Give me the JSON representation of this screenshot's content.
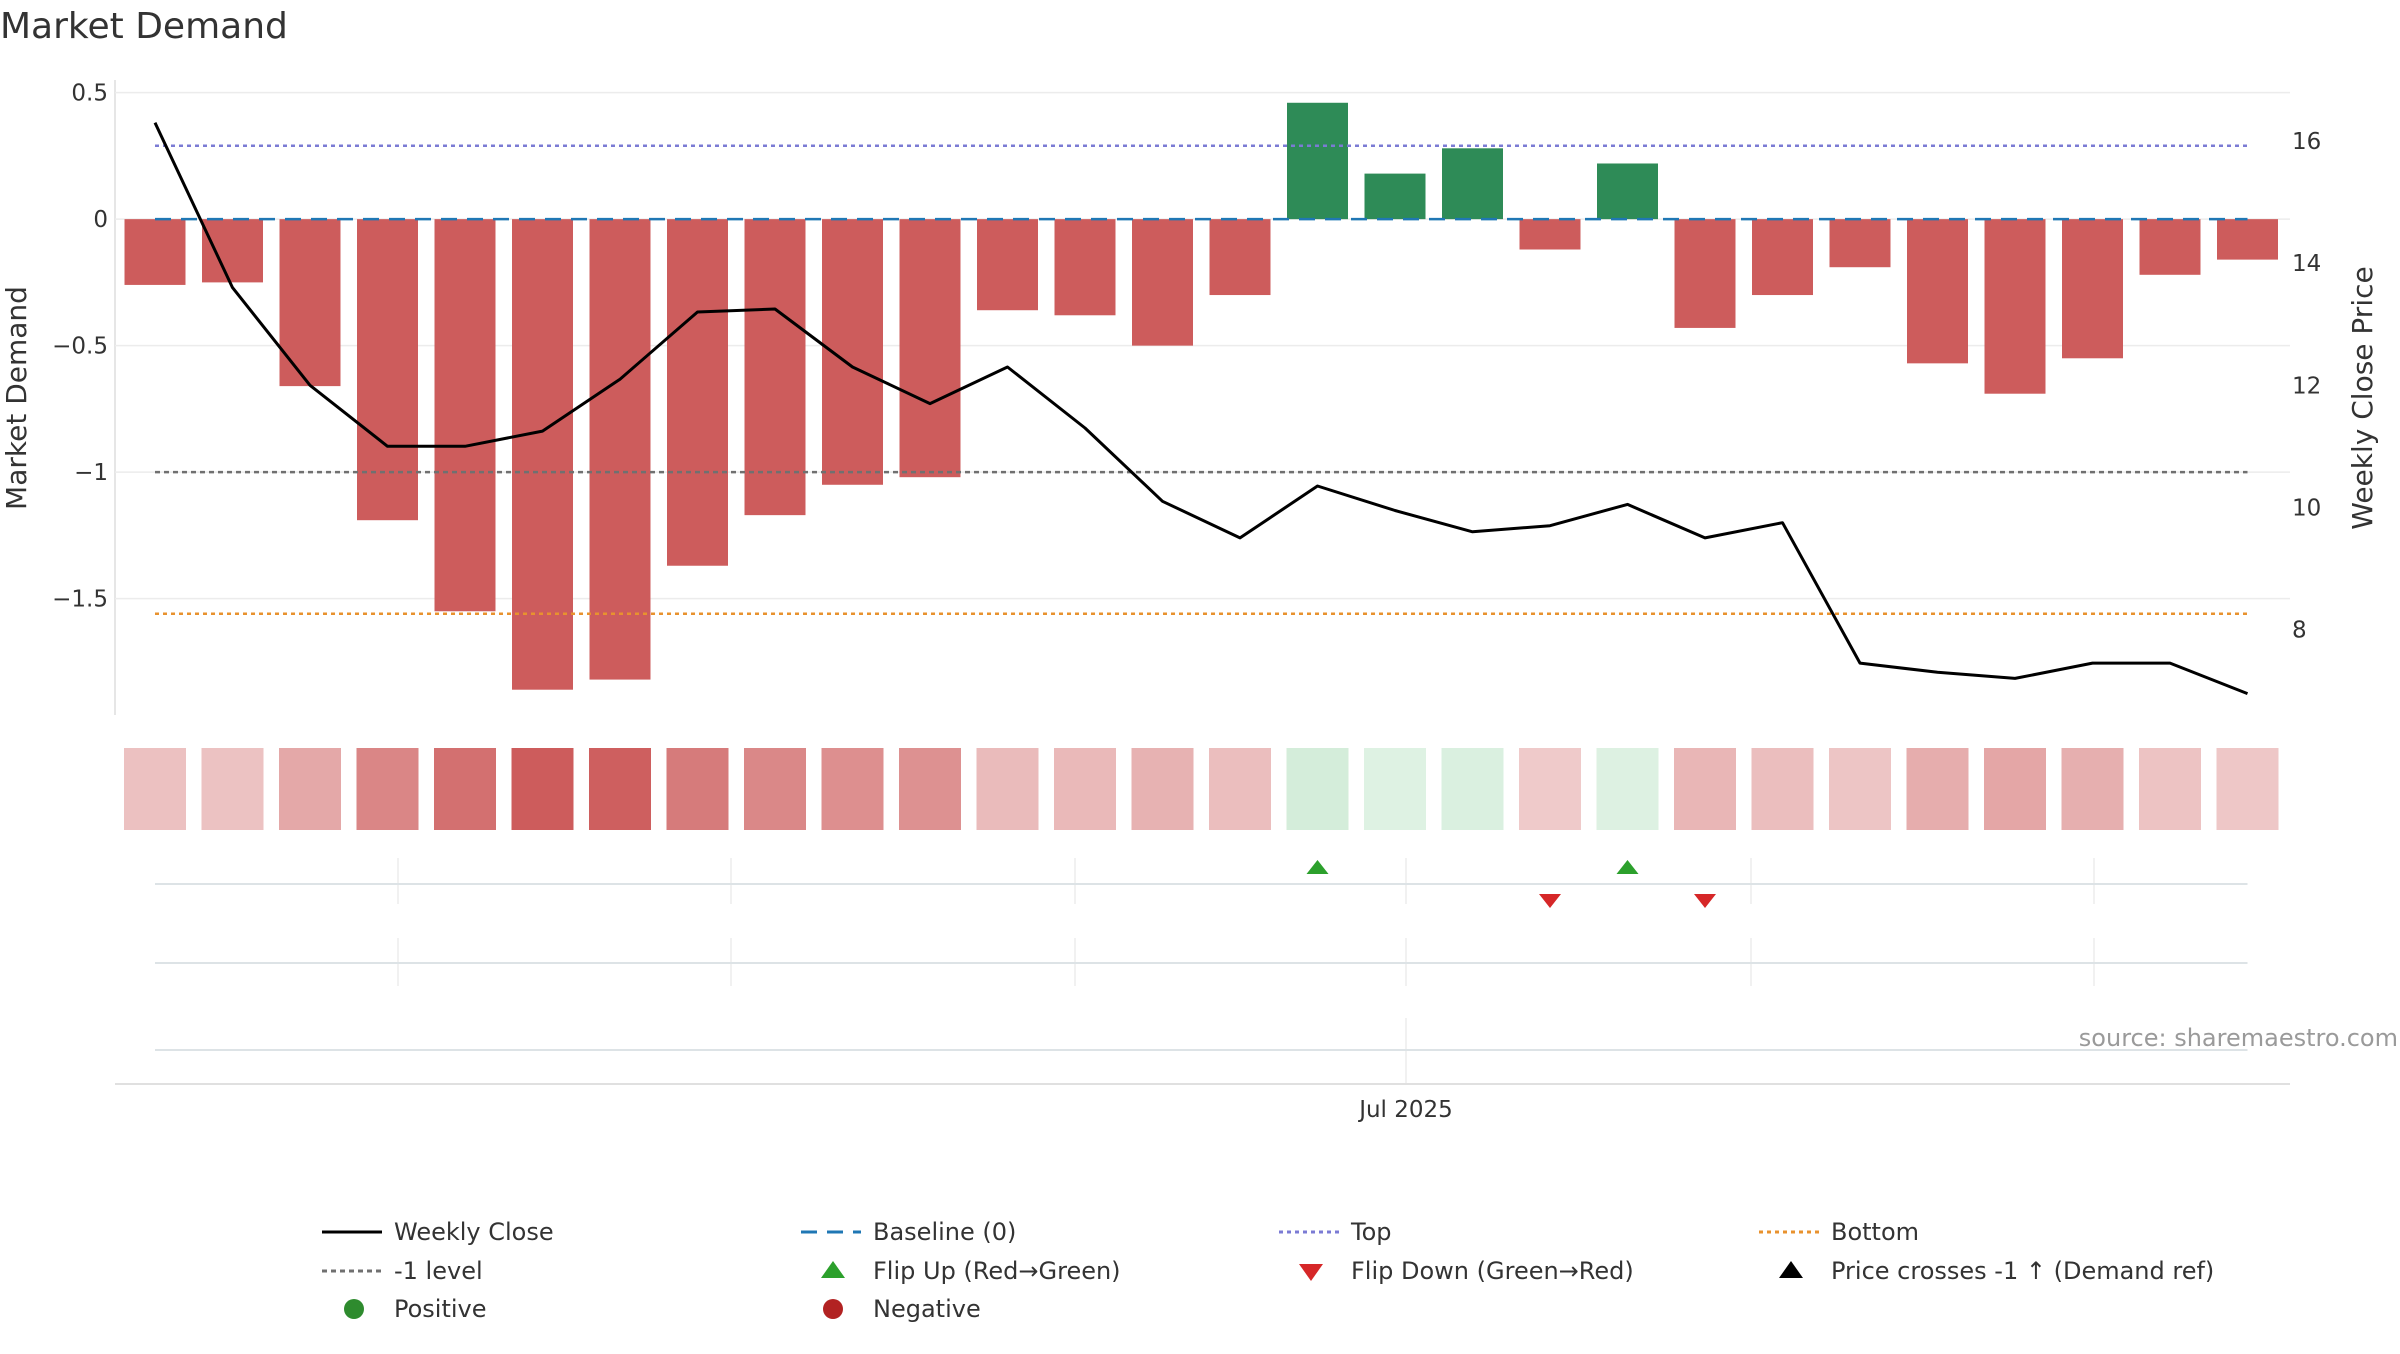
{
  "chart_data": {
    "type": "bar",
    "title": "Market Demand",
    "ylabel": "Market Demand",
    "y2label": "Weekly Close Price",
    "ylim": [
      -1.96,
      0.55
    ],
    "y2lim": [
      6.6,
      17.0
    ],
    "yticks": [
      0.5,
      0,
      -0.5,
      -1,
      -1.5
    ],
    "ytick_labels": [
      "0.5",
      "0",
      "−0.5",
      "−1",
      "−1.5"
    ],
    "y2ticks": [
      16,
      14,
      12,
      10,
      8
    ],
    "y2tick_labels": [
      "16",
      "14",
      "12",
      "10",
      "8"
    ],
    "xtick_label": "Jul 2025",
    "xtick_index": 16.15,
    "source": "source: sharemaestro.com",
    "colors": {
      "positive": "#2e8b57",
      "negative": "#cd5c5c",
      "close": "#000000",
      "baseline": "#1f77b4",
      "top": "#7b7bd4",
      "minus1": "#707070",
      "bottom": "#e8922e",
      "flip_up": "#2ca02c",
      "flip_down": "#d62728"
    },
    "reference_lines": {
      "baseline": 0,
      "top": 0.29,
      "minus1": -1,
      "bottom": -1.56
    },
    "series": [
      {
        "name": "Market Demand",
        "values": [
          -0.26,
          -0.25,
          -0.66,
          -1.19,
          -1.55,
          -1.86,
          -1.82,
          -1.37,
          -1.17,
          -1.05,
          -1.02,
          -0.36,
          -0.38,
          -0.5,
          -0.3,
          0.46,
          0.18,
          0.28,
          -0.12,
          0.22,
          -0.43,
          -0.3,
          -0.19,
          -0.57,
          -0.69,
          -0.55,
          -0.22,
          -0.16
        ]
      },
      {
        "name": "Weekly Close",
        "axis": "right",
        "values": [
          16.3,
          13.6,
          12.0,
          11.0,
          11.0,
          11.25,
          12.1,
          13.2,
          13.25,
          12.3,
          11.7,
          12.3,
          11.3,
          10.1,
          9.5,
          10.35,
          9.95,
          9.6,
          9.7,
          10.05,
          9.5,
          9.75,
          7.45,
          7.3,
          7.2,
          7.45,
          7.45,
          6.95
        ]
      }
    ],
    "flip_up_indices": [
      15,
      19
    ],
    "flip_down_indices": [
      18,
      20
    ],
    "legend": {
      "placement": "bottom",
      "items": [
        {
          "key": "close",
          "label": "Weekly Close"
        },
        {
          "key": "baseline",
          "label": "Baseline (0)"
        },
        {
          "key": "top",
          "label": "Top"
        },
        {
          "key": "bottom",
          "label": "Bottom"
        },
        {
          "key": "minus1",
          "label": "-1 level"
        },
        {
          "key": "flip_up",
          "label": "Flip Up (Red→Green)"
        },
        {
          "key": "flip_down",
          "label": "Flip Down (Green→Red)"
        },
        {
          "key": "cross",
          "label": "Price crosses -1 ↑ (Demand ref)"
        },
        {
          "key": "positive",
          "label": "Positive"
        },
        {
          "key": "negative",
          "label": "Negative"
        }
      ]
    }
  }
}
